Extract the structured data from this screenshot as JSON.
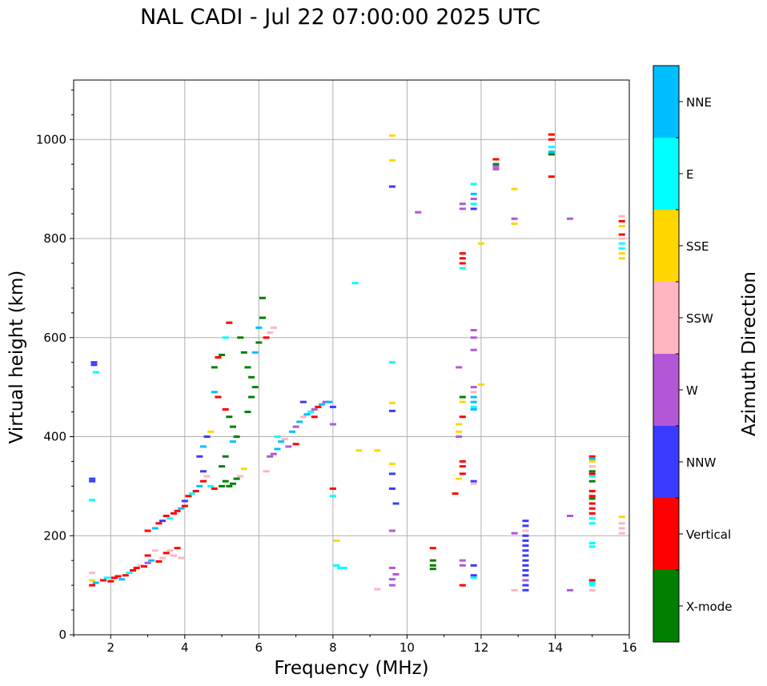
{
  "chart_data": {
    "type": "scatter",
    "title": "NAL CADI - Jul 22 07:00:00 2025 UTC",
    "xlabel": "Frequency (MHz)",
    "ylabel": "Virtual height (km)",
    "xlim": [
      1,
      16
    ],
    "ylim": [
      0,
      1120
    ],
    "xticks": [
      2,
      4,
      6,
      8,
      10,
      12,
      14,
      16
    ],
    "yticks": [
      0,
      200,
      400,
      600,
      800,
      1000
    ],
    "grid": true,
    "colorbar": {
      "label": "Azimuth Direction",
      "categories": [
        "X-mode",
        "Vertical",
        "NNW",
        "W",
        "SSW",
        "SSE",
        "E",
        "NNE"
      ],
      "colors": [
        "#008000",
        "#ff0000",
        "#3b3bff",
        "#b457d6",
        "#ffb6c1",
        "#ffd700",
        "#00ffff",
        "#00bfff"
      ]
    },
    "points": [
      [
        1.5,
        100,
        "Vertical"
      ],
      [
        1.5,
        110,
        "SSE"
      ],
      [
        1.6,
        105,
        "NNE"
      ],
      [
        1.5,
        125,
        "SSW"
      ],
      [
        1.55,
        550,
        "NNW"
      ],
      [
        1.55,
        545,
        "NNW"
      ],
      [
        1.5,
        315,
        "NNW"
      ],
      [
        1.5,
        310,
        "NNW"
      ],
      [
        1.5,
        272,
        "E"
      ],
      [
        1.6,
        530,
        "E"
      ],
      [
        1.8,
        110,
        "Vertical"
      ],
      [
        1.9,
        115,
        "E"
      ],
      [
        2.0,
        108,
        "Vertical"
      ],
      [
        2.1,
        115,
        "Vertical"
      ],
      [
        2.2,
        118,
        "Vertical"
      ],
      [
        2.3,
        112,
        "NNE"
      ],
      [
        2.4,
        120,
        "Vertical"
      ],
      [
        2.5,
        125,
        "E"
      ],
      [
        2.6,
        130,
        "Vertical"
      ],
      [
        2.7,
        135,
        "Vertical"
      ],
      [
        2.8,
        140,
        "SSW"
      ],
      [
        2.9,
        138,
        "Vertical"
      ],
      [
        3.0,
        145,
        "W"
      ],
      [
        3.0,
        160,
        "Vertical"
      ],
      [
        3.1,
        150,
        "NNE"
      ],
      [
        3.2,
        170,
        "SSW"
      ],
      [
        3.3,
        148,
        "Vertical"
      ],
      [
        3.4,
        155,
        "SSW"
      ],
      [
        3.5,
        165,
        "Vertical"
      ],
      [
        3.6,
        170,
        "SSW"
      ],
      [
        3.7,
        160,
        "SSW"
      ],
      [
        3.8,
        175,
        "Vertical"
      ],
      [
        3.9,
        155,
        "SSW"
      ],
      [
        3.0,
        210,
        "Vertical"
      ],
      [
        3.2,
        215,
        "NNE"
      ],
      [
        3.3,
        225,
        "Vertical"
      ],
      [
        3.4,
        230,
        "NNW"
      ],
      [
        3.5,
        240,
        "Vertical"
      ],
      [
        3.6,
        235,
        "E"
      ],
      [
        3.7,
        245,
        "Vertical"
      ],
      [
        3.8,
        250,
        "Vertical"
      ],
      [
        3.9,
        255,
        "NNE"
      ],
      [
        4.0,
        260,
        "Vertical"
      ],
      [
        4.0,
        270,
        "NNW"
      ],
      [
        4.1,
        280,
        "Vertical"
      ],
      [
        4.2,
        285,
        "E"
      ],
      [
        4.3,
        290,
        "Vertical"
      ],
      [
        4.4,
        300,
        "NNE"
      ],
      [
        4.5,
        310,
        "Vertical"
      ],
      [
        4.5,
        330,
        "NNW"
      ],
      [
        4.6,
        320,
        "SSW"
      ],
      [
        4.7,
        300,
        "E"
      ],
      [
        4.8,
        295,
        "Vertical"
      ],
      [
        4.4,
        360,
        "NNW"
      ],
      [
        4.5,
        380,
        "NNE"
      ],
      [
        4.6,
        400,
        "NNW"
      ],
      [
        4.7,
        410,
        "SSE"
      ],
      [
        5.0,
        300,
        "X-mode"
      ],
      [
        5.1,
        310,
        "X-mode"
      ],
      [
        5.2,
        300,
        "X-mode"
      ],
      [
        5.3,
        305,
        "X-mode"
      ],
      [
        5.4,
        315,
        "X-mode"
      ],
      [
        5.5,
        320,
        "SSW"
      ],
      [
        5.6,
        335,
        "SSE"
      ],
      [
        5.0,
        340,
        "X-mode"
      ],
      [
        5.1,
        360,
        "X-mode"
      ],
      [
        5.3,
        390,
        "NNE"
      ],
      [
        5.4,
        400,
        "X-mode"
      ],
      [
        4.8,
        490,
        "NNE"
      ],
      [
        4.9,
        480,
        "Vertical"
      ],
      [
        5.1,
        455,
        "Vertical"
      ],
      [
        5.2,
        440,
        "X-mode"
      ],
      [
        5.3,
        420,
        "X-mode"
      ],
      [
        4.8,
        540,
        "X-mode"
      ],
      [
        4.9,
        560,
        "Vertical"
      ],
      [
        5.0,
        565,
        "X-mode"
      ],
      [
        5.1,
        600,
        "E"
      ],
      [
        5.2,
        630,
        "Vertical"
      ],
      [
        5.5,
        600,
        "X-mode"
      ],
      [
        5.6,
        570,
        "X-mode"
      ],
      [
        5.7,
        540,
        "X-mode"
      ],
      [
        5.8,
        520,
        "X-mode"
      ],
      [
        5.9,
        570,
        "NNE"
      ],
      [
        6.0,
        590,
        "X-mode"
      ],
      [
        6.0,
        620,
        "NNE"
      ],
      [
        6.1,
        640,
        "X-mode"
      ],
      [
        6.1,
        680,
        "X-mode"
      ],
      [
        6.2,
        600,
        "Vertical"
      ],
      [
        6.3,
        610,
        "SSW"
      ],
      [
        6.4,
        620,
        "SSW"
      ],
      [
        5.9,
        500,
        "X-mode"
      ],
      [
        5.8,
        480,
        "X-mode"
      ],
      [
        5.7,
        450,
        "X-mode"
      ],
      [
        6.2,
        330,
        "SSW"
      ],
      [
        6.3,
        360,
        "W"
      ],
      [
        6.4,
        365,
        "W"
      ],
      [
        6.5,
        375,
        "NNE"
      ],
      [
        6.6,
        390,
        "NNE"
      ],
      [
        6.7,
        395,
        "SSW"
      ],
      [
        6.8,
        380,
        "W"
      ],
      [
        6.9,
        410,
        "NNE"
      ],
      [
        7.0,
        420,
        "W"
      ],
      [
        7.1,
        430,
        "NNE"
      ],
      [
        7.2,
        440,
        "SSW"
      ],
      [
        7.3,
        445,
        "NNE"
      ],
      [
        7.4,
        450,
        "E"
      ],
      [
        7.5,
        455,
        "W"
      ],
      [
        7.6,
        460,
        "Vertical"
      ],
      [
        7.7,
        465,
        "NNE"
      ],
      [
        7.8,
        470,
        "W"
      ],
      [
        6.5,
        400,
        "E"
      ],
      [
        7.0,
        385,
        "Vertical"
      ],
      [
        7.2,
        470,
        "NNW"
      ],
      [
        7.5,
        440,
        "Vertical"
      ],
      [
        7.9,
        470,
        "NNE"
      ],
      [
        8.0,
        460,
        "NNW"
      ],
      [
        8.0,
        425,
        "W"
      ],
      [
        8.0,
        295,
        "Vertical"
      ],
      [
        8.0,
        280,
        "E"
      ],
      [
        8.1,
        190,
        "SSE"
      ],
      [
        8.1,
        140,
        "E"
      ],
      [
        8.2,
        135,
        "E"
      ],
      [
        8.3,
        135,
        "E"
      ],
      [
        8.6,
        710,
        "E"
      ],
      [
        8.7,
        372,
        "SSE"
      ],
      [
        9.2,
        92,
        "SSW"
      ],
      [
        9.2,
        372,
        "SSE"
      ],
      [
        9.6,
        1008,
        "SSE"
      ],
      [
        9.6,
        958,
        "SSE"
      ],
      [
        9.6,
        905,
        "NNW"
      ],
      [
        9.6,
        550,
        "E"
      ],
      [
        9.6,
        468,
        "SSE"
      ],
      [
        9.6,
        452,
        "NNW"
      ],
      [
        9.6,
        345,
        "SSE"
      ],
      [
        9.6,
        325,
        "NNW"
      ],
      [
        9.6,
        295,
        "NNW"
      ],
      [
        9.7,
        265,
        "NNW"
      ],
      [
        9.6,
        210,
        "W"
      ],
      [
        9.6,
        135,
        "W"
      ],
      [
        9.7,
        122,
        "W"
      ],
      [
        9.6,
        112,
        "W"
      ],
      [
        9.6,
        100,
        "W"
      ],
      [
        10.3,
        853,
        "W"
      ],
      [
        10.7,
        175,
        "Vertical"
      ],
      [
        10.7,
        150,
        "X-mode"
      ],
      [
        10.7,
        140,
        "X-mode"
      ],
      [
        10.7,
        133,
        "X-mode"
      ],
      [
        11.3,
        285,
        "Vertical"
      ],
      [
        11.4,
        540,
        "W"
      ],
      [
        11.4,
        425,
        "SSE"
      ],
      [
        11.4,
        410,
        "SSE"
      ],
      [
        11.4,
        400,
        "W"
      ],
      [
        11.4,
        315,
        "SSE"
      ],
      [
        11.5,
        870,
        "W"
      ],
      [
        11.5,
        860,
        "W"
      ],
      [
        11.5,
        770,
        "Vertical"
      ],
      [
        11.5,
        760,
        "Vertical"
      ],
      [
        11.5,
        750,
        "Vertical"
      ],
      [
        11.5,
        740,
        "E"
      ],
      [
        11.5,
        480,
        "X-mode"
      ],
      [
        11.5,
        470,
        "SSE"
      ],
      [
        11.5,
        440,
        "Vertical"
      ],
      [
        11.5,
        350,
        "Vertical"
      ],
      [
        11.5,
        340,
        "Vertical"
      ],
      [
        11.5,
        325,
        "Vertical"
      ],
      [
        11.5,
        150,
        "W"
      ],
      [
        11.5,
        140,
        "W"
      ],
      [
        11.5,
        100,
        "Vertical"
      ],
      [
        11.8,
        910,
        "E"
      ],
      [
        11.8,
        890,
        "NNE"
      ],
      [
        11.8,
        880,
        "W"
      ],
      [
        11.8,
        870,
        "E"
      ],
      [
        11.8,
        860,
        "NNW"
      ],
      [
        11.8,
        615,
        "W"
      ],
      [
        11.8,
        600,
        "W"
      ],
      [
        11.8,
        575,
        "W"
      ],
      [
        11.8,
        500,
        "W"
      ],
      [
        11.8,
        490,
        "SSW"
      ],
      [
        11.8,
        480,
        "NNE"
      ],
      [
        11.8,
        470,
        "NNE"
      ],
      [
        11.8,
        460,
        "E"
      ],
      [
        11.8,
        455,
        "NNE"
      ],
      [
        11.8,
        310,
        "NNW"
      ],
      [
        11.8,
        305,
        "SSW"
      ],
      [
        11.8,
        140,
        "NNW"
      ],
      [
        11.8,
        120,
        "NNW"
      ],
      [
        11.8,
        115,
        "E"
      ],
      [
        12.0,
        505,
        "SSE"
      ],
      [
        12.0,
        790,
        "SSE"
      ],
      [
        12.4,
        960,
        "Vertical"
      ],
      [
        12.4,
        950,
        "X-mode"
      ],
      [
        12.4,
        945,
        "W"
      ],
      [
        12.4,
        940,
        "W"
      ],
      [
        12.9,
        900,
        "SSE"
      ],
      [
        12.9,
        840,
        "W"
      ],
      [
        12.9,
        830,
        "SSE"
      ],
      [
        12.9,
        205,
        "W"
      ],
      [
        12.9,
        90,
        "SSW"
      ],
      [
        13.2,
        230,
        "NNW"
      ],
      [
        13.2,
        220,
        "NNW"
      ],
      [
        13.2,
        210,
        "SSW"
      ],
      [
        13.2,
        200,
        "NNW"
      ],
      [
        13.2,
        190,
        "NNW"
      ],
      [
        13.2,
        180,
        "NNW"
      ],
      [
        13.2,
        170,
        "NNW"
      ],
      [
        13.2,
        160,
        "NNW"
      ],
      [
        13.2,
        150,
        "NNW"
      ],
      [
        13.2,
        140,
        "NNW"
      ],
      [
        13.2,
        130,
        "NNW"
      ],
      [
        13.2,
        120,
        "NNW"
      ],
      [
        13.2,
        110,
        "W"
      ],
      [
        13.2,
        100,
        "NNW"
      ],
      [
        13.2,
        90,
        "NNW"
      ],
      [
        13.9,
        1010,
        "Vertical"
      ],
      [
        13.9,
        1000,
        "Vertical"
      ],
      [
        13.9,
        985,
        "E"
      ],
      [
        13.9,
        975,
        "NNE"
      ],
      [
        13.9,
        970,
        "X-mode"
      ],
      [
        13.9,
        925,
        "Vertical"
      ],
      [
        14.4,
        840,
        "W"
      ],
      [
        14.4,
        240,
        "W"
      ],
      [
        14.4,
        90,
        "W"
      ],
      [
        15.0,
        360,
        "Vertical"
      ],
      [
        15.0,
        355,
        "NNE"
      ],
      [
        15.0,
        350,
        "SSE"
      ],
      [
        15.0,
        340,
        "SSW"
      ],
      [
        15.0,
        330,
        "X-mode"
      ],
      [
        15.0,
        325,
        "Vertical"
      ],
      [
        15.0,
        320,
        "E"
      ],
      [
        15.0,
        310,
        "X-mode"
      ],
      [
        15.0,
        290,
        "Vertical"
      ],
      [
        15.0,
        280,
        "Vertical"
      ],
      [
        15.0,
        275,
        "X-mode"
      ],
      [
        15.0,
        265,
        "Vertical"
      ],
      [
        15.0,
        255,
        "Vertical"
      ],
      [
        15.0,
        245,
        "Vertical"
      ],
      [
        15.0,
        235,
        "E"
      ],
      [
        15.0,
        225,
        "E"
      ],
      [
        15.0,
        185,
        "E"
      ],
      [
        15.0,
        178,
        "E"
      ],
      [
        15.0,
        110,
        "Vertical"
      ],
      [
        15.0,
        105,
        "E"
      ],
      [
        15.0,
        100,
        "E"
      ],
      [
        15.0,
        90,
        "SSW"
      ],
      [
        15.8,
        845,
        "SSW"
      ],
      [
        15.8,
        835,
        "Vertical"
      ],
      [
        15.8,
        825,
        "SSE"
      ],
      [
        15.8,
        808,
        "Vertical"
      ],
      [
        15.8,
        800,
        "SSW"
      ],
      [
        15.8,
        790,
        "E"
      ],
      [
        15.8,
        780,
        "E"
      ],
      [
        15.8,
        770,
        "SSE"
      ],
      [
        15.8,
        760,
        "SSE"
      ],
      [
        15.8,
        238,
        "SSE"
      ],
      [
        15.8,
        225,
        "SSW"
      ],
      [
        15.8,
        215,
        "SSW"
      ],
      [
        15.8,
        205,
        "SSW"
      ]
    ]
  }
}
